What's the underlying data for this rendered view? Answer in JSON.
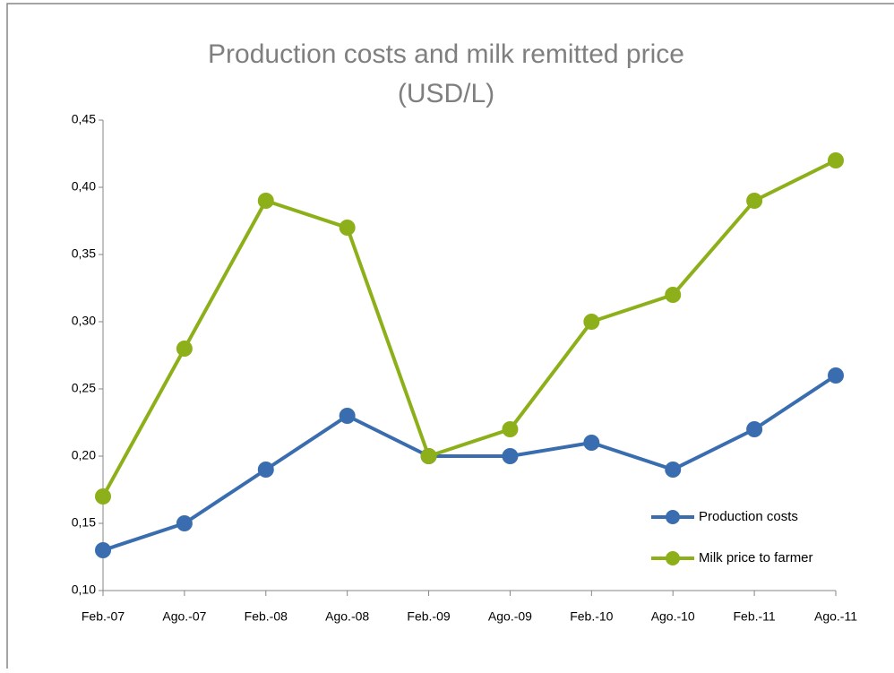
{
  "chart_data": {
    "type": "line",
    "title": [
      "Production costs and milk remitted price",
      "(USD/L)"
    ],
    "categories": [
      "Feb.-07",
      "Ago.-07",
      "Feb.-08",
      "Ago.-08",
      "Feb.-09",
      "Ago.-09",
      "Feb.-10",
      "Ago.-10",
      "Feb.-11",
      "Ago.-11"
    ],
    "series": [
      {
        "name": "Production costs",
        "color": "#3a6db0",
        "values": [
          0.13,
          0.15,
          0.19,
          0.23,
          0.2,
          0.2,
          0.21,
          0.19,
          0.22,
          0.26
        ]
      },
      {
        "name": "Milk price to farmer",
        "color": "#8db01a",
        "values": [
          0.17,
          0.28,
          0.39,
          0.37,
          0.2,
          0.22,
          0.3,
          0.32,
          0.39,
          0.42
        ]
      }
    ],
    "ylim": [
      0.1,
      0.45
    ],
    "yticks": [
      {
        "value": 0.1,
        "label": "0,10"
      },
      {
        "value": 0.15,
        "label": "0,15"
      },
      {
        "value": 0.2,
        "label": "0,20"
      },
      {
        "value": 0.25,
        "label": "0,25"
      },
      {
        "value": 0.3,
        "label": "0,30"
      },
      {
        "value": 0.35,
        "label": "0,35"
      },
      {
        "value": 0.4,
        "label": "0,40"
      },
      {
        "value": 0.45,
        "label": "0,45"
      }
    ],
    "grid": false,
    "legend": "lower right"
  }
}
